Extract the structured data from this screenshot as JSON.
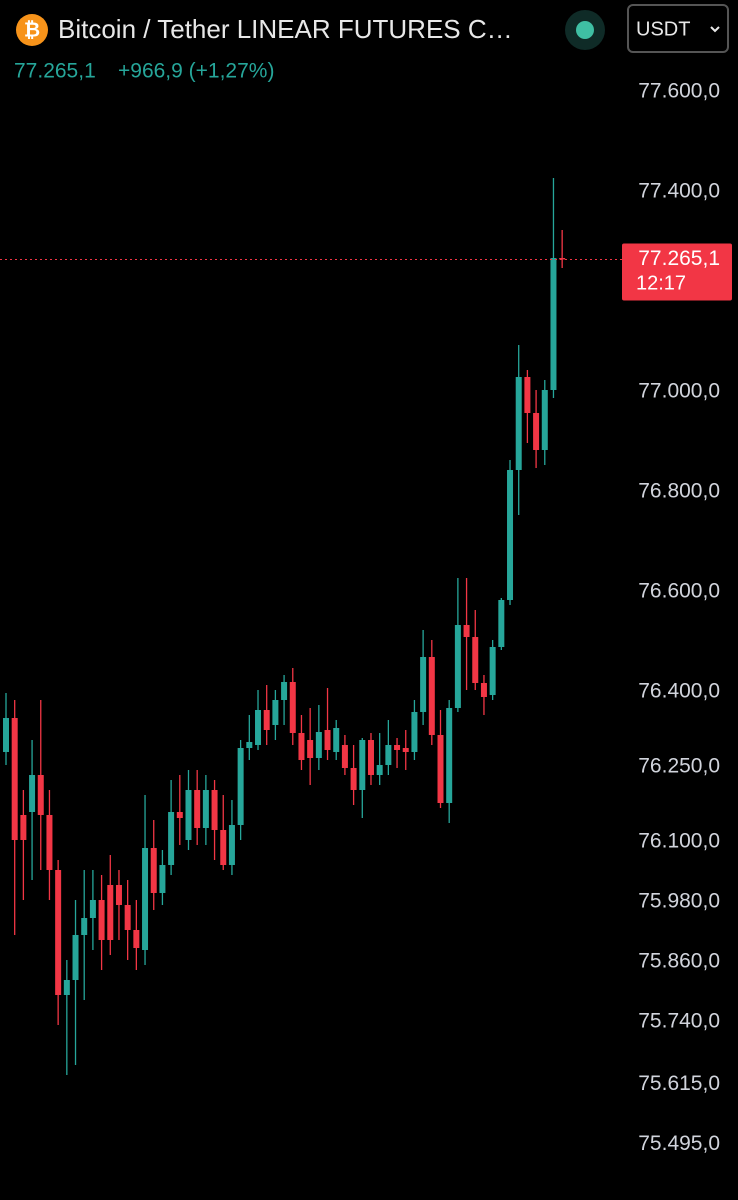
{
  "header": {
    "icon": "₿",
    "title": "Bitcoin / Tether LINEAR FUTURES C…",
    "price": "77.265,1",
    "change": "+966,9 (+1,27%)",
    "currency": "USDT"
  },
  "chart_data": {
    "type": "candlestick",
    "up_color": "#26a69a",
    "down_color": "#f23645",
    "grid": false,
    "ylim": [
      75384,
      77784
    ],
    "yticks": [
      {
        "value": 75495,
        "label": "75.495,0"
      },
      {
        "value": 75615,
        "label": "75.615,0"
      },
      {
        "value": 75740,
        "label": "75.740,0"
      },
      {
        "value": 75860,
        "label": "75.860,0"
      },
      {
        "value": 75980,
        "label": "75.980,0"
      },
      {
        "value": 76100,
        "label": "76.100,0"
      },
      {
        "value": 76250,
        "label": "76.250,0"
      },
      {
        "value": 76400,
        "label": "76.400,0"
      },
      {
        "value": 76600,
        "label": "76.600,0"
      },
      {
        "value": 76800,
        "label": "76.800,0"
      },
      {
        "value": 77000,
        "label": "77.000,0"
      },
      {
        "value": 77400,
        "label": "77.400,0"
      },
      {
        "value": 77600,
        "label": "77.600,0"
      }
    ],
    "last_price": {
      "value": 77265.1,
      "label": "77.265,1"
    },
    "countdown": "12:17",
    "open": [
      76280,
      76348,
      76154,
      76160,
      76234,
      76154,
      76044,
      75794,
      75824,
      75914,
      75948,
      75984,
      76014,
      76014,
      75974,
      75924,
      75884,
      76088,
      75998,
      76054,
      76160,
      76104,
      76204,
      76128,
      76204,
      76124,
      76054,
      76134,
      76288,
      76294,
      76364,
      76334,
      76384,
      76420,
      76318,
      76304,
      76268,
      76324,
      76280,
      76294,
      76248,
      76204,
      76304,
      76234,
      76254,
      76294,
      76288,
      76280,
      76360,
      76470,
      76314,
      76178,
      76368,
      76534,
      76510,
      76418,
      76394,
      76490,
      76584,
      76844,
      77030,
      76958,
      76884,
      77004,
      77268
    ],
    "high": [
      76398,
      76384,
      76204,
      76304,
      76384,
      76204,
      76064,
      75864,
      75984,
      76044,
      76044,
      76034,
      76074,
      76044,
      76024,
      75984,
      76194,
      76144,
      76084,
      76224,
      76234,
      76244,
      76244,
      76234,
      76224,
      76194,
      76184,
      76304,
      76354,
      76404,
      76414,
      76404,
      76434,
      76448,
      76354,
      76368,
      76374,
      76408,
      76344,
      76314,
      76294,
      76308,
      76318,
      76318,
      76344,
      76308,
      76324,
      76384,
      76524,
      76504,
      76364,
      76384,
      76628,
      76628,
      76564,
      76434,
      76504,
      76588,
      76864,
      77094,
      77044,
      77004,
      77024,
      77428,
      77324
    ],
    "low": [
      76254,
      75914,
      75984,
      76024,
      76044,
      75984,
      75734,
      75634,
      75654,
      75784,
      75884,
      75844,
      75874,
      75904,
      75864,
      75844,
      75854,
      75964,
      75974,
      76034,
      76094,
      76084,
      76094,
      76094,
      76064,
      76044,
      76034,
      76104,
      76264,
      76284,
      76294,
      76304,
      76334,
      76294,
      76244,
      76214,
      76244,
      76264,
      76264,
      76234,
      76174,
      76148,
      76214,
      76214,
      76234,
      76248,
      76244,
      76264,
      76334,
      76294,
      76168,
      76138,
      76360,
      76404,
      76404,
      76354,
      76384,
      76484,
      76574,
      76754,
      76898,
      76848,
      76854,
      76988,
      77248
    ],
    "close": [
      76348,
      76104,
      76104,
      76234,
      76154,
      76044,
      75794,
      75824,
      75914,
      75948,
      75984,
      75904,
      75904,
      75974,
      75924,
      75888,
      76088,
      75998,
      76054,
      76160,
      76148,
      76204,
      76128,
      76204,
      76124,
      76054,
      76134,
      76288,
      76300,
      76364,
      76324,
      76384,
      76420,
      76318,
      76264,
      76268,
      76320,
      76284,
      76328,
      76248,
      76204,
      76304,
      76234,
      76254,
      76294,
      76284,
      76280,
      76360,
      76470,
      76314,
      76178,
      76368,
      76534,
      76510,
      76418,
      76390,
      76490,
      76584,
      76844,
      77030,
      76958,
      76884,
      77004,
      77268,
      77265.1
    ]
  }
}
